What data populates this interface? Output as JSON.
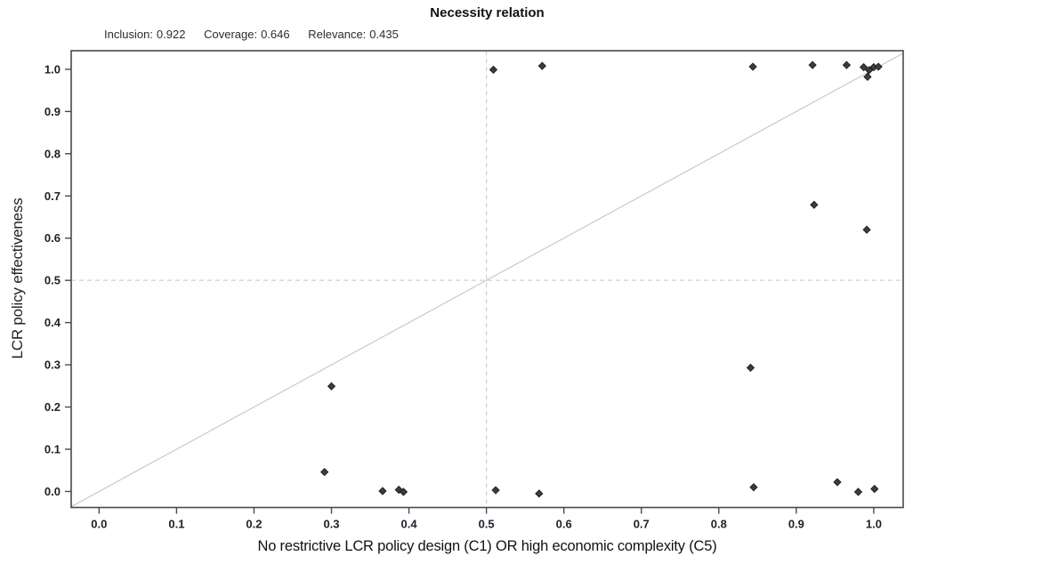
{
  "chart_data": {
    "type": "scatter",
    "title": "Necessity relation",
    "stats": [
      {
        "label": "Inclusion:",
        "value": "0.922"
      },
      {
        "label": "Coverage:",
        "value": "0.646"
      },
      {
        "label": "Relevance:",
        "value": "0.435"
      }
    ],
    "xlabel": "No restrictive LCR policy design (C1) OR high economic complexity (C5)",
    "ylabel": "LCR policy effectiveness",
    "xticks": [
      "0.0",
      "0.1",
      "0.2",
      "0.3",
      "0.4",
      "0.5",
      "0.6",
      "0.7",
      "0.8",
      "0.9",
      "1.0"
    ],
    "yticks": [
      "0.0",
      "0.1",
      "0.2",
      "0.3",
      "0.4",
      "0.5",
      "0.6",
      "0.7",
      "0.8",
      "0.9",
      "1.0"
    ],
    "xlim": [
      -0.036,
      1.038
    ],
    "ylim": [
      -0.038,
      1.044
    ],
    "grid": false,
    "marker": "diamond",
    "reference_lines": {
      "diagonal": "y = x",
      "horizontal_dashed_at": 0.5,
      "vertical_dashed_at": 0.5
    },
    "points": [
      [
        0.509,
        0.999
      ],
      [
        0.572,
        1.008
      ],
      [
        0.844,
        1.006
      ],
      [
        0.921,
        1.01
      ],
      [
        0.965,
        1.01
      ],
      [
        0.987,
        1.005
      ],
      [
        0.994,
        0.998
      ],
      [
        1.0,
        1.005
      ],
      [
        1.006,
        1.006
      ],
      [
        0.992,
        0.982
      ],
      [
        0.923,
        0.679
      ],
      [
        0.991,
        0.62
      ],
      [
        0.3,
        0.249
      ],
      [
        0.841,
        0.293
      ],
      [
        0.291,
        0.046
      ],
      [
        0.366,
        0.001
      ],
      [
        0.387,
        0.004
      ],
      [
        0.393,
        -0.001
      ],
      [
        0.512,
        0.003
      ],
      [
        0.568,
        -0.005
      ],
      [
        0.845,
        0.01
      ],
      [
        0.953,
        0.022
      ],
      [
        0.98,
        -0.001
      ],
      [
        1.001,
        0.006
      ]
    ],
    "colors": {
      "point": "#3d3d3d",
      "point_edge": "#1c1c1c",
      "diagonal": "#c9c9c9",
      "dashed": "#c5c5c5",
      "frame": "#4a4a4a",
      "tick_label": "#20202a"
    }
  }
}
